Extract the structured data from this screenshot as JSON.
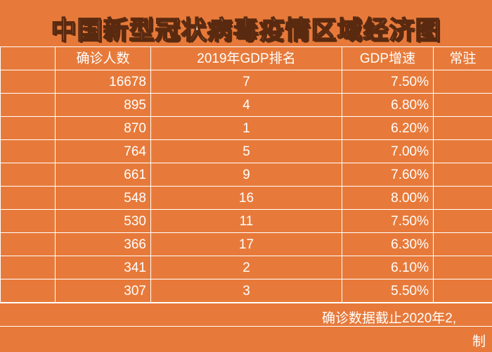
{
  "title": "中国新型冠状病毒疫情区域经济图",
  "table": {
    "headers": [
      "",
      "确诊人数",
      "2019年GDP排名",
      "GDP增速",
      "常驻"
    ],
    "rows": [
      {
        "confirmed": "16678",
        "rank": "7",
        "growth": "7.50%"
      },
      {
        "confirmed": "895",
        "rank": "4",
        "growth": "6.80%"
      },
      {
        "confirmed": "870",
        "rank": "1",
        "growth": "6.20%"
      },
      {
        "confirmed": "764",
        "rank": "5",
        "growth": "7.00%"
      },
      {
        "confirmed": "661",
        "rank": "9",
        "growth": "7.60%"
      },
      {
        "confirmed": "548",
        "rank": "16",
        "growth": "8.00%"
      },
      {
        "confirmed": "530",
        "rank": "11",
        "growth": "7.50%"
      },
      {
        "confirmed": "366",
        "rank": "17",
        "growth": "6.30%"
      },
      {
        "confirmed": "341",
        "rank": "2",
        "growth": "6.10%"
      },
      {
        "confirmed": "307",
        "rank": "3",
        "growth": "5.50%"
      }
    ]
  },
  "footnote": {
    "cutoff": "确诊数据截止2020年2,",
    "maker": "制"
  }
}
